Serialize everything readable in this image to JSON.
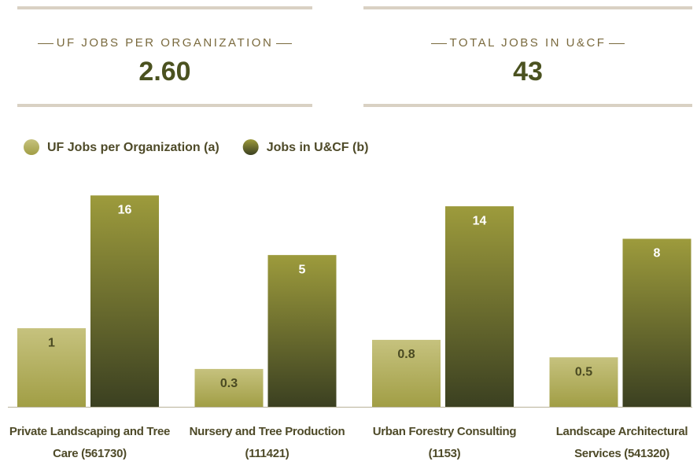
{
  "kpis": [
    {
      "label": "UF JOBS PER ORGANIZATION",
      "value": "2.60"
    },
    {
      "label": "TOTAL JOBS IN U&CF",
      "value": "43"
    }
  ],
  "chart_data": {
    "type": "bar",
    "categories": [
      "Private Landscaping and Tree Care (561730)",
      "Nursery and Tree Production (111421)",
      "Urban Forestry Consulting (1153)",
      "Landscape Architectural Services (541320)"
    ],
    "series": [
      {
        "name": "UF Jobs per Organization (a)",
        "color": "#c6c27e",
        "color_end": "#a19e45",
        "label_color": "#4a4a22",
        "values": [
          1,
          0.3,
          0.8,
          0.5
        ]
      },
      {
        "name": "Jobs in U&CF (b)",
        "color": "#9d9b3c",
        "color_end": "#3b4021",
        "label_color": "#ffffff",
        "axis": "y2",
        "values": [
          16,
          5,
          14,
          8
        ]
      }
    ],
    "ylim": [
      -0.35,
      3.3
    ],
    "y2lim": [
      -23,
      16.2
    ],
    "legend": "top-left"
  }
}
